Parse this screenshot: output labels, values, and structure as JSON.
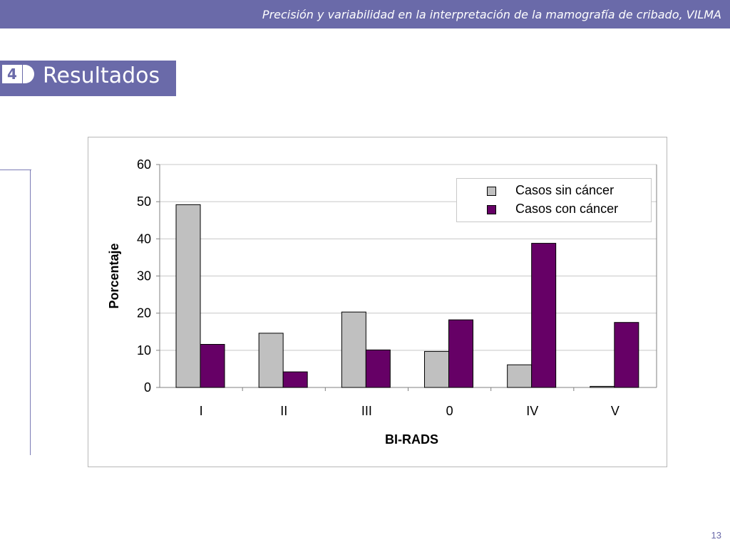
{
  "header": {
    "title": "Precisión y variabilidad en la interpretación de la mamografía de cribado, VILMA"
  },
  "section": {
    "number": "4",
    "title": "Resultados"
  },
  "colors": {
    "accent": "#6a6aa9",
    "series_sin_cancer": "#c0c0c0",
    "series_con_cancer": "#660066"
  },
  "chart_data": {
    "type": "bar",
    "categories": [
      "I",
      "II",
      "III",
      "0",
      "IV",
      "V"
    ],
    "series": [
      {
        "name": "Casos sin cáncer",
        "values": [
          49.2,
          14.6,
          20.3,
          9.7,
          6.1,
          0.3
        ]
      },
      {
        "name": "Casos con cáncer",
        "values": [
          11.6,
          4.2,
          10.1,
          18.2,
          38.8,
          17.5
        ]
      }
    ],
    "xlabel": "BI-RADS",
    "ylabel": "Porcentaje",
    "ylim": [
      0,
      60
    ],
    "yticks": [
      0,
      10,
      20,
      30,
      40,
      50,
      60
    ],
    "grid": true,
    "legend_position": "top-right"
  },
  "footer": {
    "page_number": "13"
  }
}
